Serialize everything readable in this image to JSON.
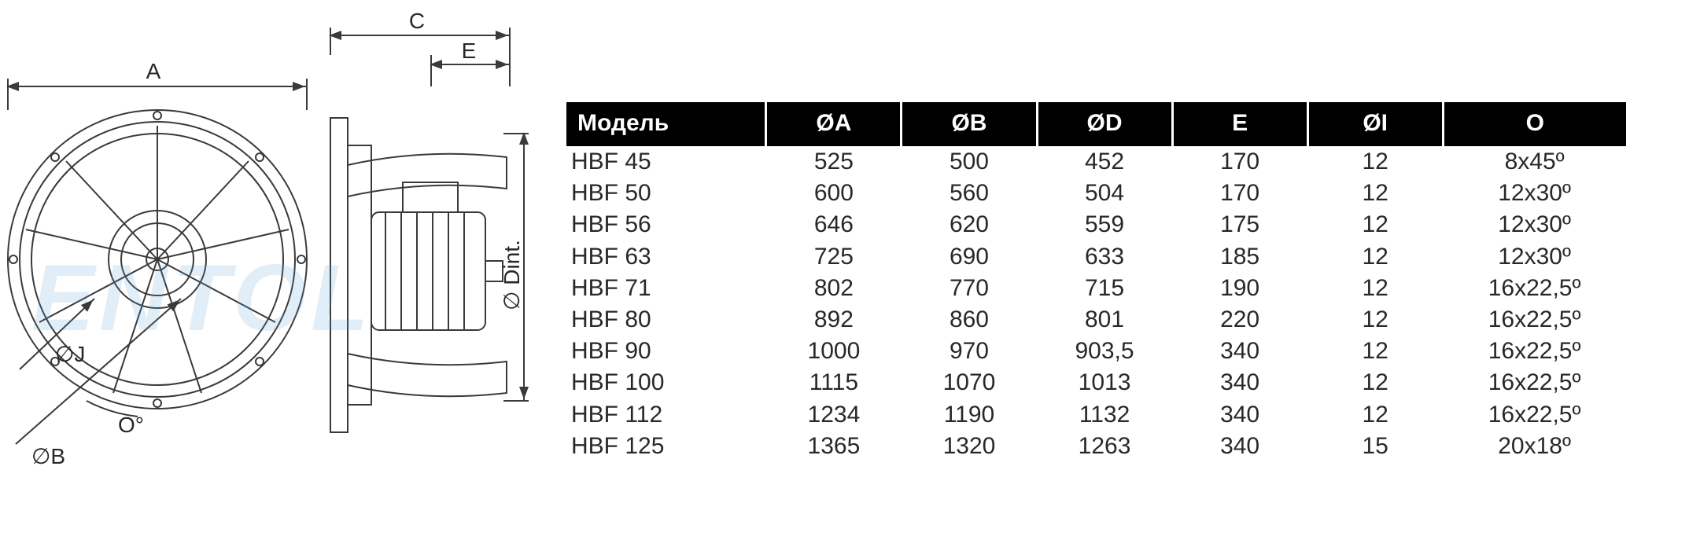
{
  "diagram": {
    "labels": {
      "A": "A",
      "C": "C",
      "E": "E",
      "J": "∅J",
      "O": "O°",
      "B": "∅B",
      "Dint": "∅ Dint."
    },
    "watermark": "ENTOL",
    "line_color": "#3a3a3a",
    "line_width": 2,
    "wm_color_top": "rgba(90,160,210,0.22)",
    "wm_color_bottom": "rgba(120,170,200,0.12)"
  },
  "table": {
    "header_bg": "#000000",
    "header_fg": "#ffffff",
    "body_fg": "#282828",
    "header_fontsize": 30,
    "body_fontsize": 30,
    "columns": [
      "Модель",
      "ØA",
      "ØB",
      "ØD",
      "E",
      "ØI",
      "O"
    ],
    "rows": [
      [
        "HBF 45",
        "525",
        "500",
        "452",
        "170",
        "12",
        "8x45º"
      ],
      [
        "HBF 50",
        "600",
        "560",
        "504",
        "170",
        "12",
        "12x30º"
      ],
      [
        "HBF 56",
        "646",
        "620",
        "559",
        "175",
        "12",
        "12x30º"
      ],
      [
        "HBF 63",
        "725",
        "690",
        "633",
        "185",
        "12",
        "12x30º"
      ],
      [
        "HBF 71",
        "802",
        "770",
        "715",
        "190",
        "12",
        "16x22,5º"
      ],
      [
        "HBF 80",
        "892",
        "860",
        "801",
        "220",
        "12",
        "16x22,5º"
      ],
      [
        "HBF 90",
        "1000",
        "970",
        "903,5",
        "340",
        "12",
        "16x22,5º"
      ],
      [
        "HBF 100",
        "1115",
        "1070",
        "1013",
        "340",
        "12",
        "16x22,5º"
      ],
      [
        "HBF 112",
        "1234",
        "1190",
        "1132",
        "340",
        "12",
        "16x22,5º"
      ],
      [
        "HBF 125",
        "1365",
        "1320",
        "1263",
        "340",
        "15",
        "20x18º"
      ]
    ]
  }
}
